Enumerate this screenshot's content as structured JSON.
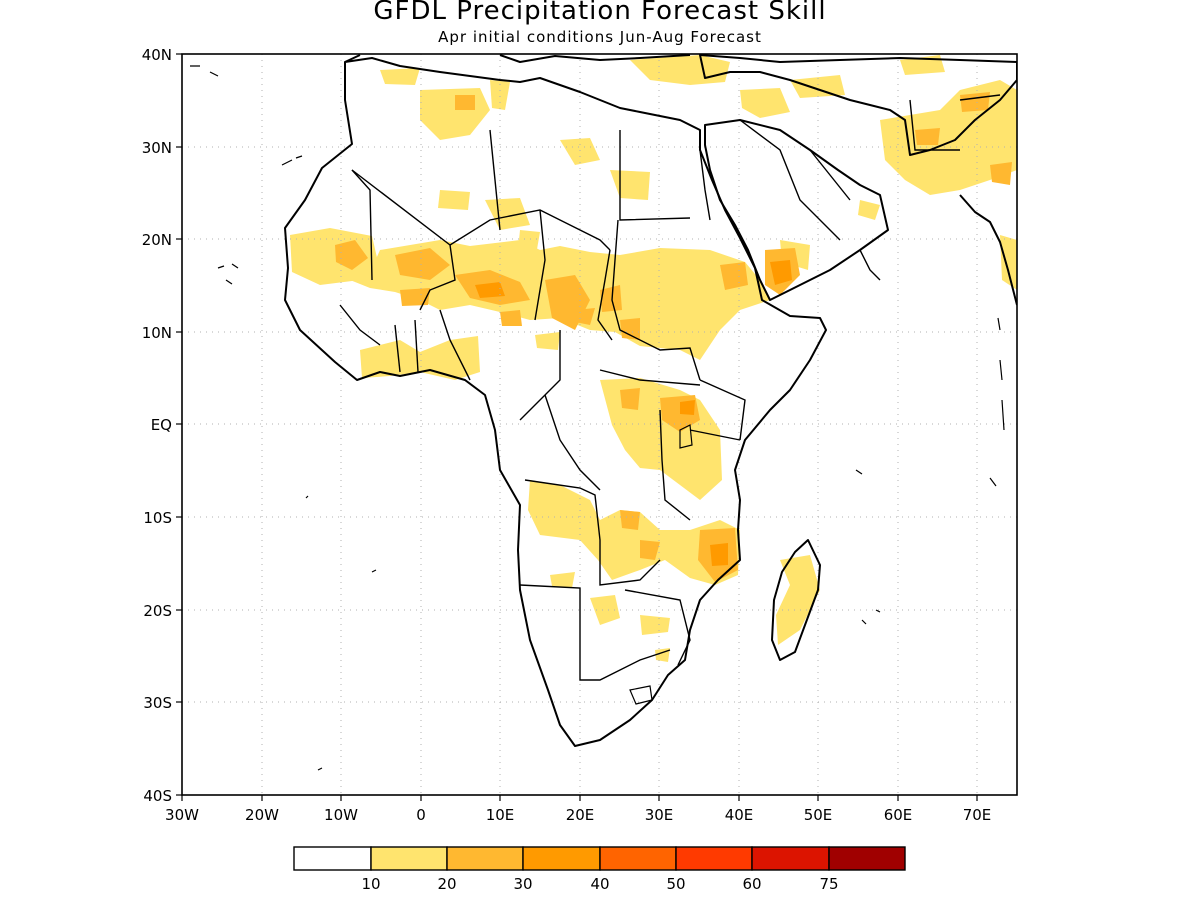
{
  "header": {
    "title": "GFDL Precipitation Forecast Skill",
    "subtitle": "Apr initial conditions  Jun-Aug Forecast"
  },
  "map": {
    "lon_range": [
      -30,
      75
    ],
    "lat_range": [
      -40,
      40
    ],
    "lat_labels": [
      "40N",
      "30N",
      "20N",
      "10N",
      "EQ",
      "10S",
      "20S",
      "30S",
      "40S"
    ],
    "lon_labels": [
      "30W",
      "20W",
      "10W",
      "0",
      "10E",
      "20E",
      "30E",
      "40E",
      "50E",
      "60E",
      "70E"
    ],
    "gridlines": "dotted",
    "fill_colors": {
      "lt10": "#ffffff",
      "10_20": "#ffe46e",
      "20_30": "#ffb830",
      "30_40": "#ff9a00"
    }
  },
  "legend": {
    "thresholds": [
      "10",
      "20",
      "30",
      "40",
      "50",
      "60",
      "75"
    ],
    "colors": [
      "#ffffff",
      "#ffe46e",
      "#ffb830",
      "#ff9a00",
      "#ff6400",
      "#ff3a00",
      "#dc1400",
      "#a00000"
    ]
  }
}
